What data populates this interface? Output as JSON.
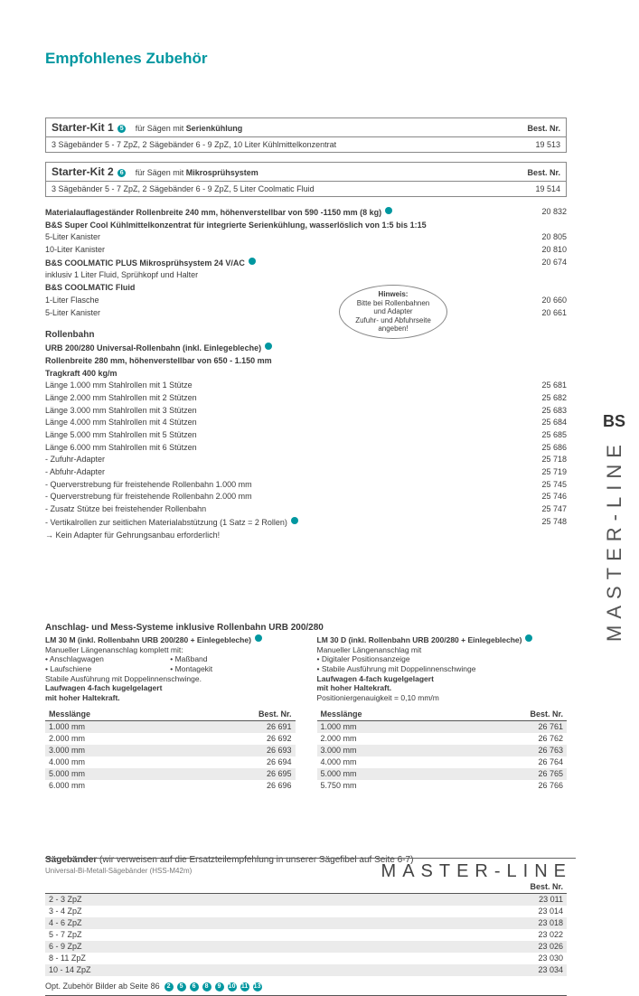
{
  "colors": {
    "accent": "#0097a0",
    "text": "#3a3a3a",
    "alt_row": "#ebebeb",
    "rule": "#555555"
  },
  "heading": "Empfohlenes Zubehör",
  "best_label": "Best. Nr.",
  "side_text": "MASTER-LINE",
  "side_logo": "BS",
  "footer_text": "MASTER-LINE",
  "kits": [
    {
      "title": "Starter-Kit 1",
      "badge": "5",
      "sub_pre": "für Sägen mit ",
      "sub_bold": "Serienkühlung",
      "body": "3 Sägebänder 5 - 7 ZpZ, 2 Sägebänder 6 - 9 ZpZ, 10 Liter Kühlmittelkonzentrat",
      "nr": "19 513"
    },
    {
      "title": "Starter-Kit 2",
      "badge": "6",
      "sub_pre": "für Sägen mit ",
      "sub_bold": "Mikrosprühsystem",
      "body": "3 Sägebänder 5 - 7 ZpZ, 2 Sägebänder 6 - 9 ZpZ, 5 Liter Coolmatic Fluid",
      "nr": "19 514"
    }
  ],
  "items": [
    {
      "l": "Materialauflageständer Rollenbreite 240 mm, höhenverstellbar von 590 -1150 mm (8 kg)",
      "r": "20 832",
      "bold": true,
      "badge": true
    },
    {
      "l": "B&S Super Cool Kühlmittelkonzentrat für integrierte Serienkühlung, wasserlöslich von 1:5 bis 1:15",
      "r": "",
      "bold": true
    },
    {
      "l": "  5-Liter Kanister",
      "r": "20 805"
    },
    {
      "l": "10-Liter Kanister",
      "r": "20 810"
    },
    {
      "l": "B&S COOLMATIC PLUS Mikrosprühsystem 24 V/AC",
      "r": "20 674",
      "bold": true,
      "badge": true
    },
    {
      "l": "inklusiv 1 Liter Fluid, Sprühkopf und Halter",
      "r": ""
    },
    {
      "l": "B&S COOLMATIC Fluid",
      "r": "",
      "bold": true
    },
    {
      "l": "1-Liter Flasche",
      "r": "20 660"
    },
    {
      "l": "5-Liter Kanister",
      "r": "20 661"
    }
  ],
  "rollenbahn": {
    "title": "Rollenbahn",
    "head": "URB 200/280 Universal-Rollenbahn (inkl. Einlegebleche)",
    "spec": "Rollenbreite 280 mm, höhenverstellbar von 650 - 1.150 mm",
    "load": "Tragkraft 400 kg/m",
    "rows": [
      {
        "l": "Länge 1.000 mm Stahlrollen mit 1 Stütze",
        "r": "25 681"
      },
      {
        "l": "Länge 2.000 mm Stahlrollen mit 2 Stützen",
        "r": "25 682"
      },
      {
        "l": "Länge 3.000 mm Stahlrollen mit 3 Stützen",
        "r": "25 683"
      },
      {
        "l": "Länge 4.000 mm Stahlrollen mit 4 Stützen",
        "r": "25 684"
      },
      {
        "l": "Länge 5.000 mm Stahlrollen mit 5 Stützen",
        "r": "25 685"
      },
      {
        "l": "Länge 6.000 mm Stahlrollen mit 6 Stützen",
        "r": "25 686"
      },
      {
        "l": "- Zufuhr-Adapter",
        "r": "25 718"
      },
      {
        "l": "- Abfuhr-Adapter",
        "r": "25 719"
      },
      {
        "l": "- Querverstrebung für freistehende Rollenbahn 1.000 mm",
        "r": "25 745"
      },
      {
        "l": "- Querverstrebung für freistehende Rollenbahn 2.000 mm",
        "r": "25 746"
      },
      {
        "l": "- Zusatz Stütze bei freistehender Rollenbahn",
        "r": "25 747"
      },
      {
        "l": "- Vertikalrollen zur seitlichen Materialabstützung (1 Satz = 2 Rollen)",
        "r": "25 748",
        "badge": true
      },
      {
        "l": "→ Kein Adapter für Gehrungsanbau erforderlich!",
        "r": ""
      }
    ]
  },
  "hint": {
    "t": "Hinweis:",
    "l1": "Bitte bei Rollenbahnen",
    "l2": "und Adapter",
    "l3": "Zufuhr- und Abfuhrseite",
    "l4": "angeben!"
  },
  "anschlag": {
    "title": "Anschlag- und Mess-Systeme inklusive Rollenbahn URB 200/280",
    "left": {
      "head": "LM 30 M (inkl. Rollenbahn URB 200/280 + Einlegebleche)",
      "line1": "Manueller Längenanschlag komplett mit:",
      "b1a": "• Anschlagwagen",
      "b1b": "• Maßband",
      "b2a": "• Laufschiene",
      "b2b": "• Montagekit",
      "foot1": "Stabile Ausführung mit Doppelinnenschwinge.",
      "foot2": "Laufwagen 4-fach kugelgelagert",
      "foot3": "mit hoher Haltekraft.",
      "th1": "Messlänge",
      "th2": "Best. Nr.",
      "rows": [
        {
          "a": "1.000 mm",
          "b": "26 691"
        },
        {
          "a": "2.000 mm",
          "b": "26 692"
        },
        {
          "a": "3.000 mm",
          "b": "26 693"
        },
        {
          "a": "4.000 mm",
          "b": "26 694"
        },
        {
          "a": "5.000 mm",
          "b": "26 695"
        },
        {
          "a": "6.000 mm",
          "b": "26 696"
        }
      ]
    },
    "right": {
      "head": "LM 30 D (inkl. Rollenbahn URB 200/280 + Einlegebleche)",
      "line1": "Manueller Längenanschlag mit",
      "b1a": "• Digitaler Positionsanzeige",
      "b1b": "• Stabile Ausführung mit Doppelinnenschwinge",
      "foot1": "Laufwagen 4-fach kugelgelagert",
      "foot2": "mit hoher Haltekraft.",
      "foot3": "Positioniergenauigkeit = 0,10 mm/m",
      "th1": "Messlänge",
      "th2": "Best. Nr.",
      "rows": [
        {
          "a": "1.000 mm",
          "b": "26 761"
        },
        {
          "a": "2.000 mm",
          "b": "26 762"
        },
        {
          "a": "3.000 mm",
          "b": "26 763"
        },
        {
          "a": "4.000 mm",
          "b": "26 764"
        },
        {
          "a": "5.000 mm",
          "b": "26 765"
        },
        {
          "a": "5.750 mm",
          "b": "26 766"
        }
      ]
    }
  },
  "saw": {
    "title": "Sägebänder",
    "note": "(wir verweisen auf die Ersatzteilempfehlung in unserer Sägefibel auf Seite 6-7)",
    "legend": "Universal-Bi-Metall-Sägebänder (HSS-M42m)",
    "th": "Best. Nr.",
    "rows": [
      {
        "a": "2 - 3 ZpZ",
        "b": "23 011"
      },
      {
        "a": "3 - 4 ZpZ",
        "b": "23 014"
      },
      {
        "a": "4 - 6 ZpZ",
        "b": "23 018"
      },
      {
        "a": "5 - 7 ZpZ",
        "b": "23 022"
      },
      {
        "a": "6 - 9 ZpZ",
        "b": "23 026"
      },
      {
        "a": "8 - 11 ZpZ",
        "b": "23 030"
      },
      {
        "a": "10 - 14 ZpZ",
        "b": "23 034"
      }
    ]
  },
  "optline": {
    "text": "Opt. Zubehör Bilder ab Seite 86",
    "badges": [
      "2",
      "5",
      "6",
      "8",
      "9",
      "10",
      "11",
      "13"
    ]
  }
}
